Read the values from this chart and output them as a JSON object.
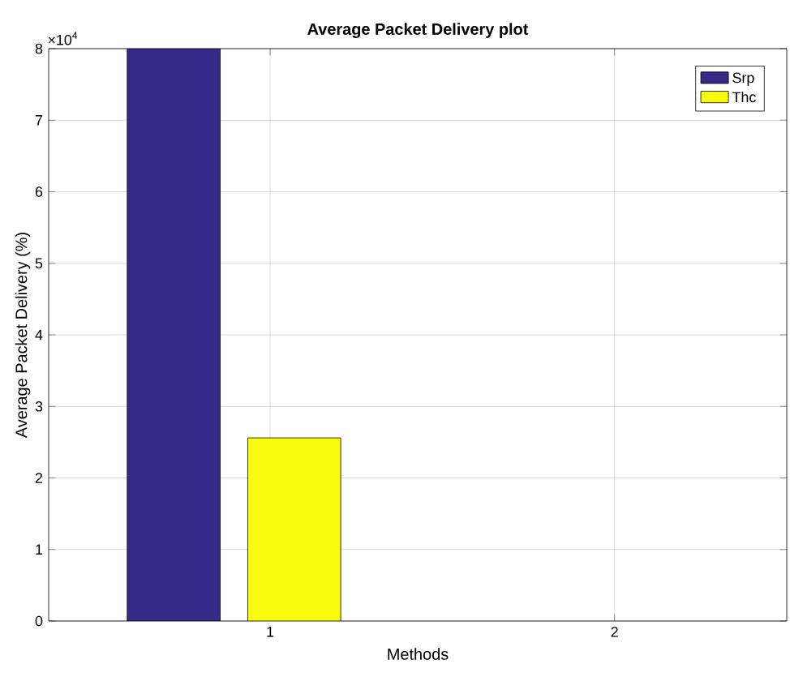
{
  "chart_data": {
    "type": "bar",
    "title": "Average Packet Delivery plot",
    "xlabel": "Methods",
    "ylabel": "Average Packet Delivery (%)",
    "categories": [
      "1",
      "2"
    ],
    "series": [
      {
        "name": "Srp",
        "color": "#352a87",
        "values": [
          8,
          null
        ]
      },
      {
        "name": "Thc",
        "color": "#f9fb0e",
        "values": [
          2.56,
          null
        ]
      }
    ],
    "ylim": [
      0,
      8
    ],
    "yticks": [
      0,
      1,
      2,
      3,
      4,
      5,
      6,
      7,
      8
    ],
    "annotations": [
      "×10$^{4}$"
    ],
    "grid": true,
    "legend": "top right"
  }
}
